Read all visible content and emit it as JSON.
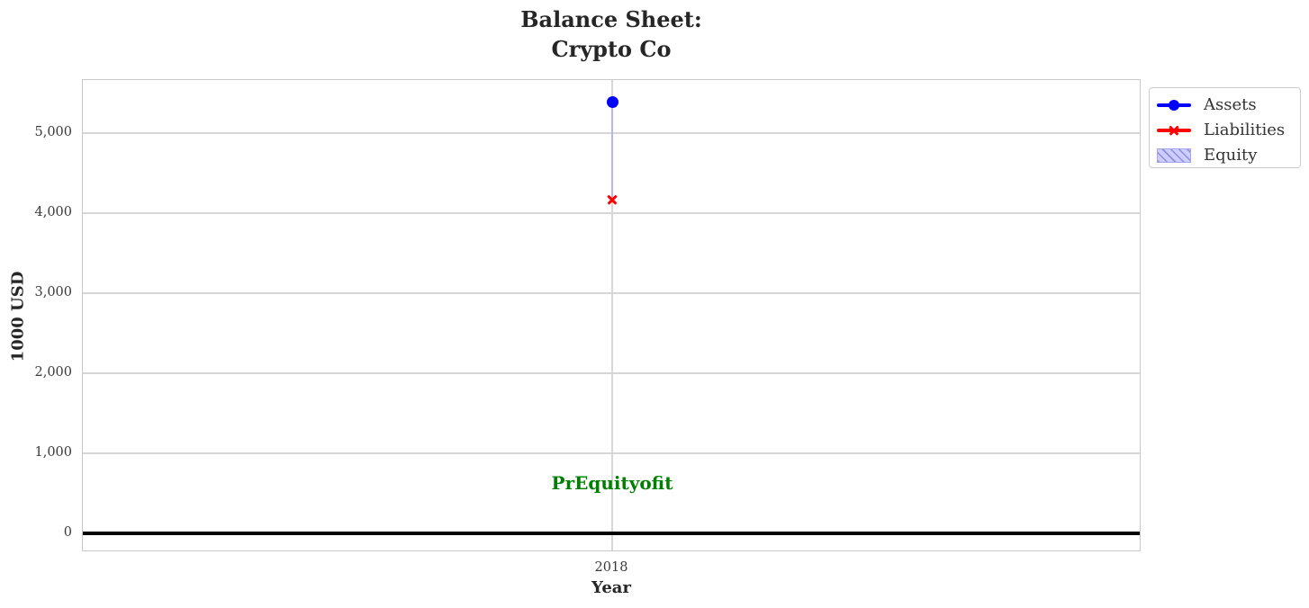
{
  "chart_data": {
    "type": "line",
    "title": "Balance Sheet:\nCrypto Co",
    "title_lines": [
      "Balance Sheet:",
      "Crypto Co"
    ],
    "xlabel": "Year",
    "ylabel": "1000 USD",
    "x": [
      2018
    ],
    "xlim": [
      2017.5,
      2018.5
    ],
    "ylim": [
      -235,
      5665
    ],
    "xticks": [
      2018
    ],
    "xtick_labels": [
      "2018"
    ],
    "yticks": [
      0,
      1000,
      2000,
      3000,
      4000,
      5000
    ],
    "ytick_labels": [
      "0",
      "1,000",
      "2,000",
      "3,000",
      "4,000",
      "5,000"
    ],
    "grid": true,
    "series": [
      {
        "name": "Assets",
        "values": [
          5385
        ],
        "color": "#0000ff",
        "marker": "circle"
      },
      {
        "name": "Liabilities",
        "values": [
          4175
        ],
        "color": "#ff0000",
        "marker": "x"
      },
      {
        "name": "Equity",
        "kind": "band-between-liabilities-and-assets",
        "values": [
          1210
        ],
        "fill": "#ccccff",
        "hatch_color": "#8d8de0",
        "edge_color": "#a6a6ea"
      }
    ],
    "zero_line": {
      "y": 0,
      "color": "#000000"
    },
    "annotation": {
      "text": "PrEquityofit",
      "x": 2018,
      "y": 630,
      "color": "#008000"
    },
    "legend": {
      "position": "outside-upper-right",
      "items": [
        "Assets",
        "Liabilities",
        "Equity"
      ]
    }
  },
  "colors": {
    "grid": "#d6d6d6",
    "spine": "#c8c8c8",
    "tick_text": "#3a3a3a",
    "title_text": "#262626",
    "band_line": "#b7b7e8"
  }
}
